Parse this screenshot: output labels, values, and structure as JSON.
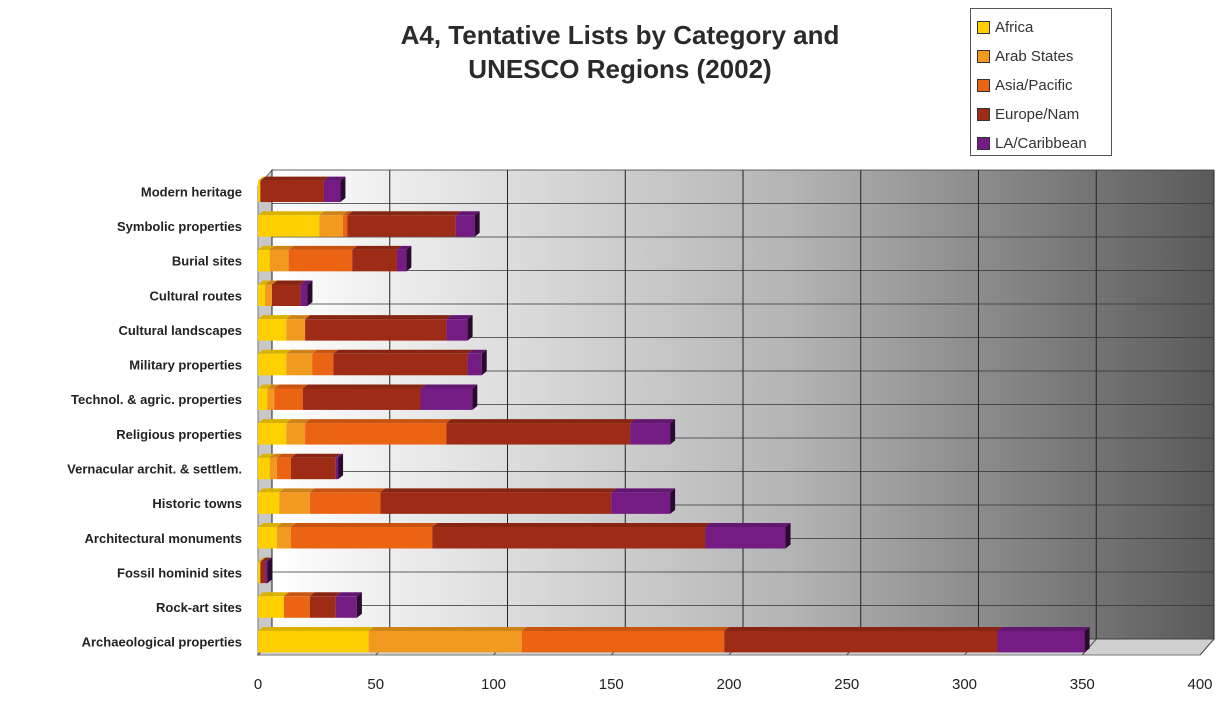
{
  "title": "A4, Tentative Lists by Category and\nUNESCO Regions (2002)",
  "legend_position": "top-right",
  "chart_data": {
    "type": "bar",
    "orientation": "horizontal",
    "stacked": true,
    "title": "A4, Tentative Lists by Category and UNESCO Regions (2002)",
    "xlabel": "",
    "ylabel": "",
    "xlim": [
      0,
      400
    ],
    "xticks": [
      0,
      50,
      100,
      150,
      200,
      250,
      300,
      350,
      400
    ],
    "grid": true,
    "legend": "top-right",
    "categories": [
      "Modern heritage",
      "Symbolic properties",
      "Burial sites",
      "Cultural routes",
      "Cultural landscapes",
      "Military properties",
      "Technol. & agric. properties",
      "Religious properties",
      "Vernacular archit. & settlem.",
      "Historic towns",
      "Architectural  monuments",
      "Fossil hominid sites",
      "Rock-art sites",
      "Archaeological properties"
    ],
    "series": [
      {
        "name": "Africa",
        "color": "#ffd000",
        "values": [
          1,
          26,
          5,
          3,
          12,
          12,
          4,
          12,
          5,
          9,
          8,
          1,
          11,
          47
        ]
      },
      {
        "name": "Arab States",
        "color": "#f29a1f",
        "values": [
          0,
          10,
          8,
          3,
          8,
          11,
          3,
          8,
          3,
          13,
          6,
          0,
          0,
          65
        ]
      },
      {
        "name": "Asia/Pacific",
        "color": "#ea6414",
        "values": [
          0,
          2,
          27,
          0,
          0,
          9,
          12,
          60,
          6,
          30,
          60,
          0,
          11,
          86
        ]
      },
      {
        "name": "Europe/Nam",
        "color": "#9e2b15",
        "values": [
          27,
          46,
          19,
          12,
          60,
          57,
          50,
          78,
          19,
          98,
          116,
          2,
          11,
          116
        ]
      },
      {
        "name": "LA/Caribbean",
        "color": "#741b84",
        "values": [
          7,
          8,
          4,
          3,
          9,
          6,
          22,
          17,
          1,
          25,
          34,
          1,
          9,
          37
        ]
      }
    ]
  }
}
